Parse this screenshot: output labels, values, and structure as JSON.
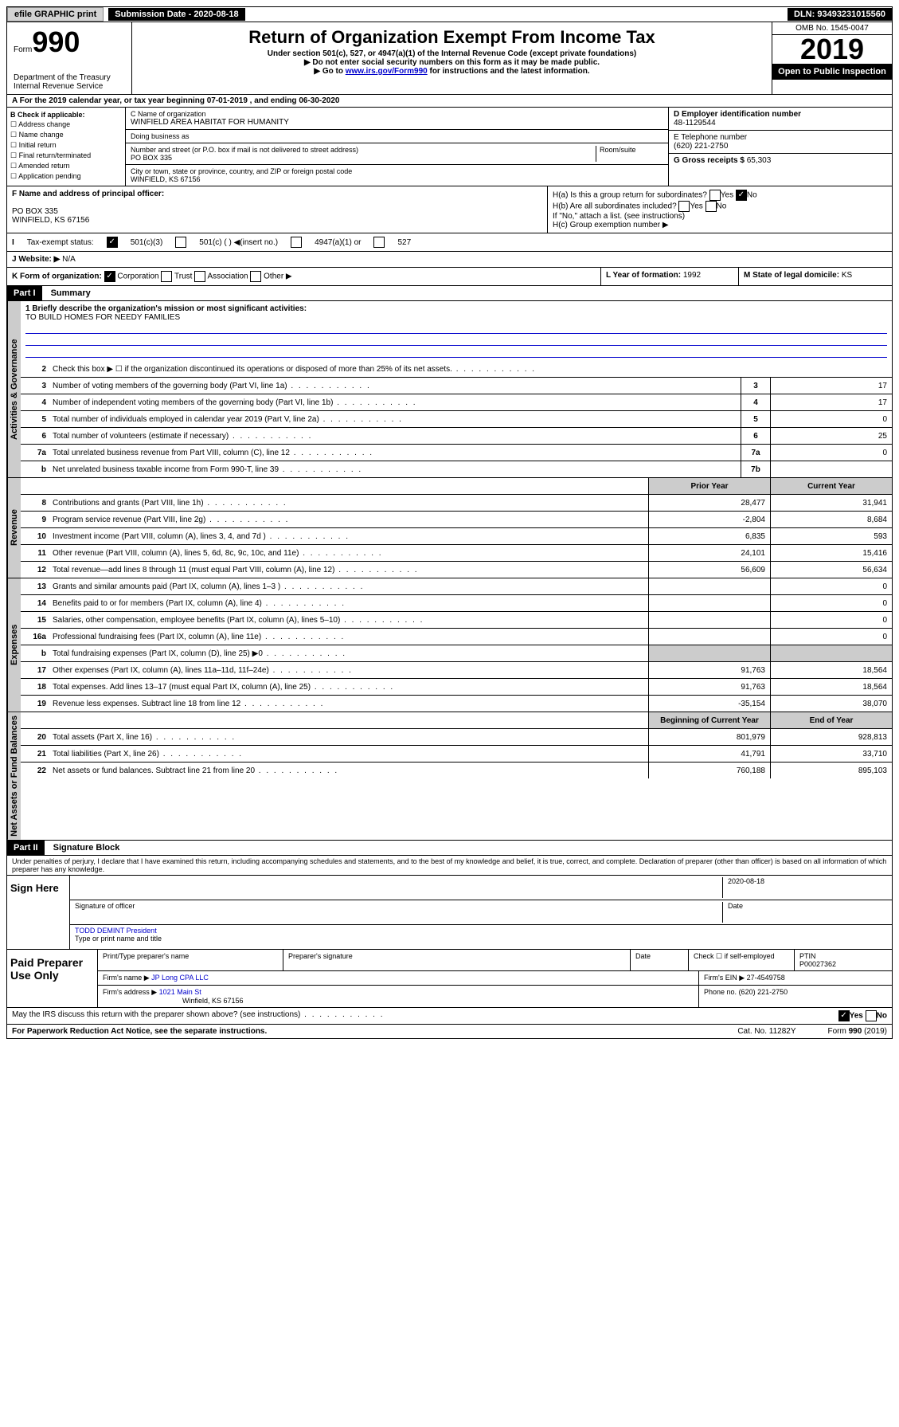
{
  "top": {
    "efile": "efile GRAPHIC print",
    "sub_label": "Submission Date - 2020-08-18",
    "dln": "DLN: 93493231015560"
  },
  "header": {
    "form_word": "Form",
    "form_num": "990",
    "title": "Return of Organization Exempt From Income Tax",
    "sub1": "Under section 501(c), 527, or 4947(a)(1) of the Internal Revenue Code (except private foundations)",
    "sub2": "▶ Do not enter social security numbers on this form as it may be made public.",
    "sub3_a": "▶ Go to ",
    "sub3_link": "www.irs.gov/Form990",
    "sub3_b": " for instructions and the latest information.",
    "omb": "OMB No. 1545-0047",
    "year": "2019",
    "open": "Open to Public Inspection",
    "dept": "Department of the Treasury\nInternal Revenue Service"
  },
  "rowA": "A For the 2019 calendar year, or tax year beginning 07-01-2019      , and ending 06-30-2020",
  "b_checks": [
    "Address change",
    "Name change",
    "Initial return",
    "Final return/terminated",
    "Amended return",
    "Application pending"
  ],
  "b_label": "B Check if applicable:",
  "c": {
    "label": "C Name of organization",
    "name": "WINFIELD AREA HABITAT FOR HUMANITY",
    "dba": "Doing business as",
    "addr_label": "Number and street (or P.O. box if mail is not delivered to street address)",
    "room": "Room/suite",
    "addr": "PO BOX 335",
    "city_label": "City or town, state or province, country, and ZIP or foreign postal code",
    "city": "WINFIELD, KS  67156"
  },
  "d": {
    "label": "D Employer identification number",
    "val": "48-1129544"
  },
  "e": {
    "label": "E Telephone number",
    "val": "(620) 221-2750"
  },
  "g": {
    "label": "G Gross receipts $",
    "val": "65,303"
  },
  "f": {
    "label": "F Name and address of principal officer:",
    "addr1": "PO BOX 335",
    "addr2": "WINFIELD, KS  67156"
  },
  "h": {
    "a": "H(a)  Is this a group return for subordinates?",
    "b": "H(b)  Are all subordinates included?",
    "b2": "If \"No,\" attach a list. (see instructions)",
    "c": "H(c)  Group exemption number ▶",
    "yes": "Yes",
    "no": "No"
  },
  "i": {
    "label": "Tax-exempt status:",
    "o1": "501(c)(3)",
    "o2": "501(c) (  ) ◀(insert no.)",
    "o3": "4947(a)(1) or",
    "o4": "527"
  },
  "j": {
    "label": "Website: ▶",
    "val": "N/A"
  },
  "k": {
    "label": "K Form of organization:",
    "o1": "Corporation",
    "o2": "Trust",
    "o3": "Association",
    "o4": "Other ▶"
  },
  "l": {
    "label": "L Year of formation:",
    "val": "1992"
  },
  "m": {
    "label": "M State of legal domicile:",
    "val": "KS"
  },
  "part1": {
    "hdr": "Part I",
    "title": "Summary"
  },
  "mission": {
    "q": "1  Briefly describe the organization's mission or most significant activities:",
    "a": "TO BUILD HOMES FOR NEEDY FAMILIES"
  },
  "gov_lines": [
    {
      "n": "2",
      "t": "Check this box ▶ ☐ if the organization discontinued its operations or disposed of more than 25% of its net assets."
    },
    {
      "n": "3",
      "t": "Number of voting members of the governing body (Part VI, line 1a)",
      "box": "3",
      "v": "17"
    },
    {
      "n": "4",
      "t": "Number of independent voting members of the governing body (Part VI, line 1b)",
      "box": "4",
      "v": "17"
    },
    {
      "n": "5",
      "t": "Total number of individuals employed in calendar year 2019 (Part V, line 2a)",
      "box": "5",
      "v": "0"
    },
    {
      "n": "6",
      "t": "Total number of volunteers (estimate if necessary)",
      "box": "6",
      "v": "25"
    },
    {
      "n": "7a",
      "t": "Total unrelated business revenue from Part VIII, column (C), line 12",
      "box": "7a",
      "v": "0"
    },
    {
      "n": "b",
      "t": "Net unrelated business taxable income from Form 990-T, line 39",
      "box": "7b",
      "v": ""
    }
  ],
  "rev_hdr": {
    "py": "Prior Year",
    "cy": "Current Year"
  },
  "rev_lines": [
    {
      "n": "8",
      "t": "Contributions and grants (Part VIII, line 1h)",
      "py": "28,477",
      "cy": "31,941"
    },
    {
      "n": "9",
      "t": "Program service revenue (Part VIII, line 2g)",
      "py": "-2,804",
      "cy": "8,684"
    },
    {
      "n": "10",
      "t": "Investment income (Part VIII, column (A), lines 3, 4, and 7d )",
      "py": "6,835",
      "cy": "593"
    },
    {
      "n": "11",
      "t": "Other revenue (Part VIII, column (A), lines 5, 6d, 8c, 9c, 10c, and 11e)",
      "py": "24,101",
      "cy": "15,416"
    },
    {
      "n": "12",
      "t": "Total revenue—add lines 8 through 11 (must equal Part VIII, column (A), line 12)",
      "py": "56,609",
      "cy": "56,634"
    }
  ],
  "exp_lines": [
    {
      "n": "13",
      "t": "Grants and similar amounts paid (Part IX, column (A), lines 1–3 )",
      "py": "",
      "cy": "0"
    },
    {
      "n": "14",
      "t": "Benefits paid to or for members (Part IX, column (A), line 4)",
      "py": "",
      "cy": "0"
    },
    {
      "n": "15",
      "t": "Salaries, other compensation, employee benefits (Part IX, column (A), lines 5–10)",
      "py": "",
      "cy": "0"
    },
    {
      "n": "16a",
      "t": "Professional fundraising fees (Part IX, column (A), line 11e)",
      "py": "",
      "cy": "0"
    },
    {
      "n": "b",
      "t": "Total fundraising expenses (Part IX, column (D), line 25) ▶0",
      "py": null,
      "cy": null
    },
    {
      "n": "17",
      "t": "Other expenses (Part IX, column (A), lines 11a–11d, 11f–24e)",
      "py": "91,763",
      "cy": "18,564"
    },
    {
      "n": "18",
      "t": "Total expenses. Add lines 13–17 (must equal Part IX, column (A), line 25)",
      "py": "91,763",
      "cy": "18,564"
    },
    {
      "n": "19",
      "t": "Revenue less expenses. Subtract line 18 from line 12",
      "py": "-35,154",
      "cy": "38,070"
    }
  ],
  "na_hdr": {
    "py": "Beginning of Current Year",
    "cy": "End of Year"
  },
  "na_lines": [
    {
      "n": "20",
      "t": "Total assets (Part X, line 16)",
      "py": "801,979",
      "cy": "928,813"
    },
    {
      "n": "21",
      "t": "Total liabilities (Part X, line 26)",
      "py": "41,791",
      "cy": "33,710"
    },
    {
      "n": "22",
      "t": "Net assets or fund balances. Subtract line 21 from line 20",
      "py": "760,188",
      "cy": "895,103"
    }
  ],
  "side": {
    "gov": "Activities & Governance",
    "rev": "Revenue",
    "exp": "Expenses",
    "na": "Net Assets or\nFund Balances"
  },
  "part2": {
    "hdr": "Part II",
    "title": "Signature Block"
  },
  "perjury": "Under penalties of perjury, I declare that I have examined this return, including accompanying schedules and statements, and to the best of my knowledge and belief, it is true, correct, and complete. Declaration of preparer (other than officer) is based on all information of which preparer has any knowledge.",
  "sign": {
    "label": "Sign Here",
    "date": "2020-08-18",
    "sig": "Signature of officer",
    "dt": "Date",
    "name": "TODD DEMINT President",
    "name_lbl": "Type or print name and title"
  },
  "paid": {
    "label": "Paid Preparer Use Only",
    "h1": "Print/Type preparer's name",
    "h2": "Preparer's signature",
    "h3": "Date",
    "h4": "Check ☐ if self-employed",
    "h5": "PTIN",
    "ptin": "P00027362",
    "firm_lbl": "Firm's name   ▶",
    "firm": "JP Long CPA LLC",
    "ein_lbl": "Firm's EIN ▶",
    "ein": "27-4549758",
    "addr_lbl": "Firm's address ▶",
    "addr": "1021 Main St",
    "addr2": "Winfield, KS  67156",
    "phone_lbl": "Phone no.",
    "phone": "(620) 221-2750"
  },
  "discuss": "May the IRS discuss this return with the preparer shown above? (see instructions)",
  "footer": {
    "l": "For Paperwork Reduction Act Notice, see the separate instructions.",
    "m": "Cat. No. 11282Y",
    "r": "Form 990 (2019)"
  }
}
